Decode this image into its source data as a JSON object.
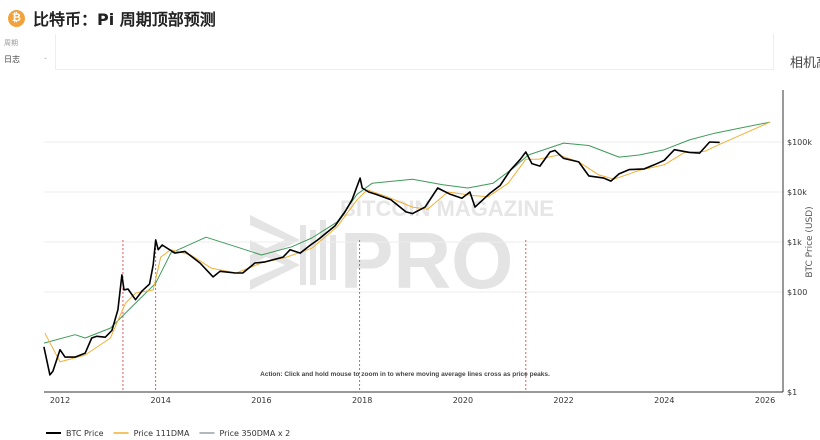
{
  "header": {
    "title": "比特币：Pi 周期顶部预测",
    "icon": "bitcoin-icon",
    "icon_glyph": "₿"
  },
  "controls": {
    "scale_label": "周期",
    "scale_value": "日志",
    "camera_label": "相机高"
  },
  "watermark": {
    "line1": "BITCOIN MAGAZINE",
    "line2": "PRO"
  },
  "annotation": "Action: Click and hold mouse to zoom in to where moving average lines cross as price peaks.",
  "chart_data": {
    "type": "line",
    "title": "",
    "xlabel": "",
    "ylabel": "BTC Price (USD)",
    "y_scale": "log",
    "ylim": [
      1,
      400000
    ],
    "xlim": [
      2011.7,
      2026.3
    ],
    "x_ticks": [
      "2012",
      "2014",
      "2016",
      "2018",
      "2020",
      "2022",
      "2024",
      "2026"
    ],
    "y_ticks": [
      {
        "value": 1,
        "label": "$1"
      },
      {
        "value": 100,
        "label": "$100"
      },
      {
        "value": 1000,
        "label": "$1k"
      },
      {
        "value": 10000,
        "label": "$10k"
      },
      {
        "value": 100000,
        "label": "$100k"
      }
    ],
    "grid": true,
    "legend_position": "bottom-left",
    "cross_markers": [
      2013.25,
      2013.9,
      2017.95,
      2021.25
    ],
    "cross_marker_color": "#e0303a",
    "series": [
      {
        "name": "BTC Price",
        "color": "#000000",
        "points": [
          [
            2011.68,
            8
          ],
          [
            2011.8,
            2.2
          ],
          [
            2011.86,
            2.6
          ],
          [
            2012.0,
            7
          ],
          [
            2012.1,
            5
          ],
          [
            2012.3,
            5
          ],
          [
            2012.5,
            6
          ],
          [
            2012.63,
            12
          ],
          [
            2012.73,
            13
          ],
          [
            2012.9,
            12.5
          ],
          [
            2013.03,
            17
          ],
          [
            2013.15,
            44
          ],
          [
            2013.23,
            220
          ],
          [
            2013.27,
            110
          ],
          [
            2013.35,
            115
          ],
          [
            2013.5,
            70
          ],
          [
            2013.63,
            105
          ],
          [
            2013.78,
            145
          ],
          [
            2013.85,
            350
          ],
          [
            2013.9,
            1100
          ],
          [
            2013.95,
            700
          ],
          [
            2014.03,
            870
          ],
          [
            2014.28,
            600
          ],
          [
            2014.48,
            650
          ],
          [
            2014.78,
            380
          ],
          [
            2015.04,
            200
          ],
          [
            2015.18,
            260
          ],
          [
            2015.48,
            240
          ],
          [
            2015.63,
            240
          ],
          [
            2015.87,
            380
          ],
          [
            2016.07,
            400
          ],
          [
            2016.43,
            500
          ],
          [
            2016.57,
            700
          ],
          [
            2016.77,
            600
          ],
          [
            2016.96,
            850
          ],
          [
            2017.12,
            1100
          ],
          [
            2017.46,
            2100
          ],
          [
            2017.66,
            4000
          ],
          [
            2017.8,
            7000
          ],
          [
            2017.96,
            19000
          ],
          [
            2018.0,
            12000
          ],
          [
            2018.13,
            10000
          ],
          [
            2018.27,
            9000
          ],
          [
            2018.57,
            7000
          ],
          [
            2018.87,
            4000
          ],
          [
            2019.0,
            3700
          ],
          [
            2019.25,
            5000
          ],
          [
            2019.5,
            12000
          ],
          [
            2019.75,
            9000
          ],
          [
            2019.98,
            7500
          ],
          [
            2020.14,
            10000
          ],
          [
            2020.24,
            5000
          ],
          [
            2020.54,
            9500
          ],
          [
            2020.74,
            13500
          ],
          [
            2020.94,
            27000
          ],
          [
            2021.14,
            45000
          ],
          [
            2021.25,
            63000
          ],
          [
            2021.37,
            37000
          ],
          [
            2021.53,
            33000
          ],
          [
            2021.73,
            63000
          ],
          [
            2021.83,
            68000
          ],
          [
            2022.0,
            47000
          ],
          [
            2022.3,
            40000
          ],
          [
            2022.5,
            21000
          ],
          [
            2022.8,
            19000
          ],
          [
            2022.94,
            16500
          ],
          [
            2023.1,
            23000
          ],
          [
            2023.3,
            28000
          ],
          [
            2023.6,
            29000
          ],
          [
            2023.8,
            35000
          ],
          [
            2024.0,
            43000
          ],
          [
            2024.2,
            70000
          ],
          [
            2024.5,
            62000
          ],
          [
            2024.7,
            60000
          ],
          [
            2024.9,
            100000
          ],
          [
            2025.1,
            98000
          ]
        ]
      },
      {
        "name": "Price 111DMA",
        "color": "#f2b035",
        "points": [
          [
            2011.7,
            15
          ],
          [
            2012.0,
            4
          ],
          [
            2012.5,
            5.5
          ],
          [
            2013.0,
            12
          ],
          [
            2013.3,
            60
          ],
          [
            2013.5,
            95
          ],
          [
            2013.85,
            110
          ],
          [
            2014.0,
            500
          ],
          [
            2014.2,
            700
          ],
          [
            2014.6,
            550
          ],
          [
            2015.0,
            300
          ],
          [
            2015.5,
            240
          ],
          [
            2016.0,
            380
          ],
          [
            2016.5,
            500
          ],
          [
            2017.0,
            750
          ],
          [
            2017.5,
            2000
          ],
          [
            2017.9,
            7000
          ],
          [
            2018.1,
            11000
          ],
          [
            2018.5,
            8000
          ],
          [
            2019.0,
            5000
          ],
          [
            2019.3,
            4500
          ],
          [
            2019.7,
            10000
          ],
          [
            2020.2,
            8500
          ],
          [
            2020.5,
            8000
          ],
          [
            2020.9,
            15000
          ],
          [
            2021.25,
            45000
          ],
          [
            2021.5,
            45000
          ],
          [
            2021.9,
            55000
          ],
          [
            2022.3,
            40000
          ],
          [
            2022.7,
            22000
          ],
          [
            2023.0,
            18000
          ],
          [
            2023.5,
            27000
          ],
          [
            2024.0,
            35000
          ],
          [
            2024.4,
            62000
          ],
          [
            2024.8,
            65000
          ],
          [
            2025.1,
            90000
          ],
          [
            2025.6,
            150000
          ],
          [
            2026.1,
            250000
          ]
        ]
      },
      {
        "name": "Price 350DMA x 2",
        "color": "#3f9a5a",
        "legend_color": "#9aa0a6",
        "points": [
          [
            2011.68,
            9.5
          ],
          [
            2012.3,
            14
          ],
          [
            2012.5,
            12
          ],
          [
            2013.0,
            19
          ],
          [
            2013.5,
            60
          ],
          [
            2013.9,
            150
          ],
          [
            2014.2,
            600
          ],
          [
            2014.9,
            1250
          ],
          [
            2015.5,
            800
          ],
          [
            2016.0,
            550
          ],
          [
            2016.6,
            800
          ],
          [
            2017.0,
            1200
          ],
          [
            2017.5,
            2500
          ],
          [
            2017.9,
            9000
          ],
          [
            2018.2,
            15000
          ],
          [
            2019.0,
            18000
          ],
          [
            2019.6,
            14000
          ],
          [
            2020.1,
            12000
          ],
          [
            2020.6,
            15000
          ],
          [
            2021.0,
            30000
          ],
          [
            2021.3,
            55000
          ],
          [
            2022.0,
            95000
          ],
          [
            2022.5,
            85000
          ],
          [
            2023.1,
            50000
          ],
          [
            2023.5,
            55000
          ],
          [
            2024.0,
            70000
          ],
          [
            2024.5,
            110000
          ],
          [
            2025.0,
            150000
          ],
          [
            2025.5,
            190000
          ],
          [
            2026.1,
            250000
          ]
        ]
      }
    ]
  }
}
